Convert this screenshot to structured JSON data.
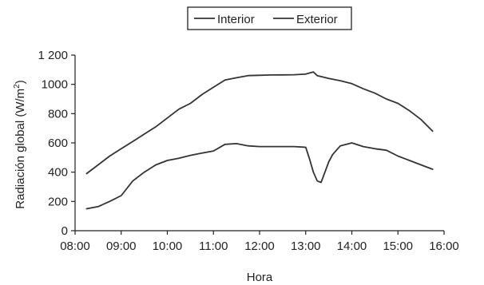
{
  "chart_data": {
    "type": "line",
    "title": "",
    "xlabel": "Hora",
    "ylabel_prefix": "Radiación global (W/m",
    "ylabel_sup": "2",
    "ylabel_suffix": ")",
    "x_ticks": [
      "08:00",
      "09:00",
      "10:00",
      "11:00",
      "12:00",
      "13:00",
      "14:00",
      "15:00",
      "16:00"
    ],
    "y_ticks": [
      "0",
      "200",
      "400",
      "600",
      "800",
      "1000",
      "1 200"
    ],
    "xlim": [
      "08:00",
      "16:00"
    ],
    "ylim": [
      0,
      1200
    ],
    "grid": false,
    "legend_position": "top-center",
    "series": [
      {
        "name": "Interior",
        "color": "#333333",
        "x": [
          "08:15",
          "08:30",
          "08:45",
          "09:00",
          "09:15",
          "09:30",
          "09:45",
          "10:00",
          "10:15",
          "10:30",
          "10:45",
          "11:00",
          "11:15",
          "11:30",
          "11:45",
          "12:00",
          "12:15",
          "12:30",
          "12:45",
          "13:00",
          "13:05",
          "13:10",
          "13:15",
          "13:20",
          "13:25",
          "13:30",
          "13:35",
          "13:45",
          "14:00",
          "14:15",
          "14:30",
          "14:45",
          "15:00",
          "15:15",
          "15:30",
          "15:45"
        ],
        "y": [
          150,
          165,
          200,
          240,
          340,
          400,
          450,
          480,
          495,
          515,
          530,
          545,
          590,
          595,
          580,
          575,
          575,
          575,
          575,
          570,
          490,
          400,
          340,
          330,
          400,
          470,
          520,
          580,
          600,
          575,
          560,
          550,
          510,
          480,
          450,
          420
        ]
      },
      {
        "name": "Exterior",
        "color": "#333333",
        "x": [
          "08:15",
          "08:30",
          "08:45",
          "09:00",
          "09:15",
          "09:30",
          "09:45",
          "10:00",
          "10:15",
          "10:30",
          "10:45",
          "11:00",
          "11:15",
          "11:30",
          "11:45",
          "12:00",
          "12:15",
          "12:30",
          "12:45",
          "13:00",
          "13:10",
          "13:15",
          "13:30",
          "13:45",
          "14:00",
          "14:15",
          "14:30",
          "14:45",
          "15:00",
          "15:15",
          "15:30",
          "15:45"
        ],
        "y": [
          390,
          450,
          510,
          560,
          610,
          660,
          710,
          770,
          830,
          870,
          930,
          980,
          1030,
          1045,
          1060,
          1062,
          1064,
          1065,
          1066,
          1070,
          1085,
          1060,
          1040,
          1025,
          1005,
          970,
          940,
          900,
          870,
          820,
          760,
          680
        ]
      }
    ]
  }
}
